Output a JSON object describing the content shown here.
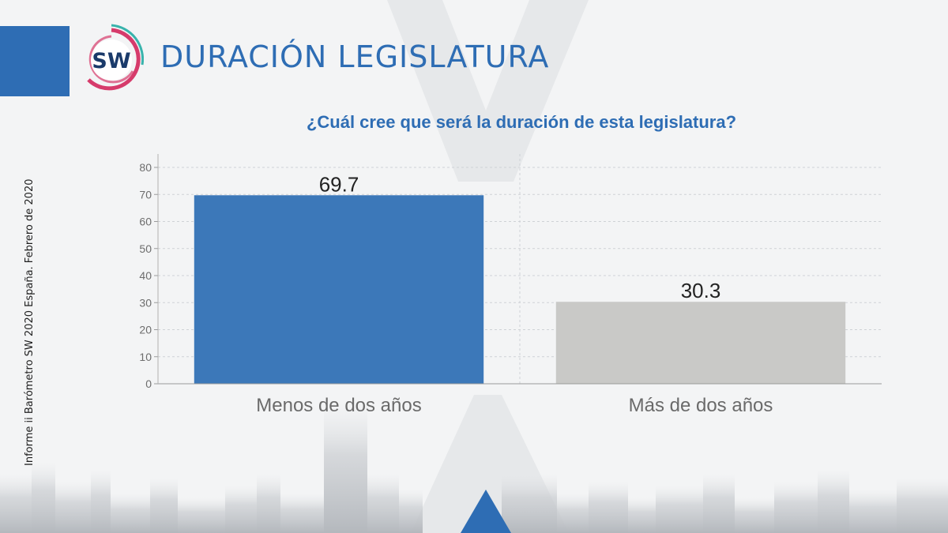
{
  "header": {
    "title": "DURACIÓN LEGISLATURA",
    "logo_text": "SW"
  },
  "side_note": "Informe ii Barómetro SW 2020 España. Febrero de 2020",
  "colors": {
    "brand_blue": "#2e6db4",
    "bar_primary": "#3c78b9",
    "bar_secondary": "#c9c9c7",
    "logo_pink": "#d63b6b",
    "logo_teal": "#39b3ac"
  },
  "chart_data": {
    "type": "bar",
    "title": "¿Cuál cree que será la duración de esta legislatura?",
    "categories": [
      "Menos de dos años",
      "Más de dos años"
    ],
    "values": [
      69.7,
      30.3
    ],
    "bar_colors": [
      "#3c78b9",
      "#c9c9c7"
    ],
    "ylim": [
      0,
      80
    ],
    "yticks": [
      0,
      10,
      20,
      30,
      40,
      50,
      60,
      70,
      80
    ],
    "xlabel": "",
    "ylabel": "",
    "grid": true,
    "legend": "none"
  }
}
